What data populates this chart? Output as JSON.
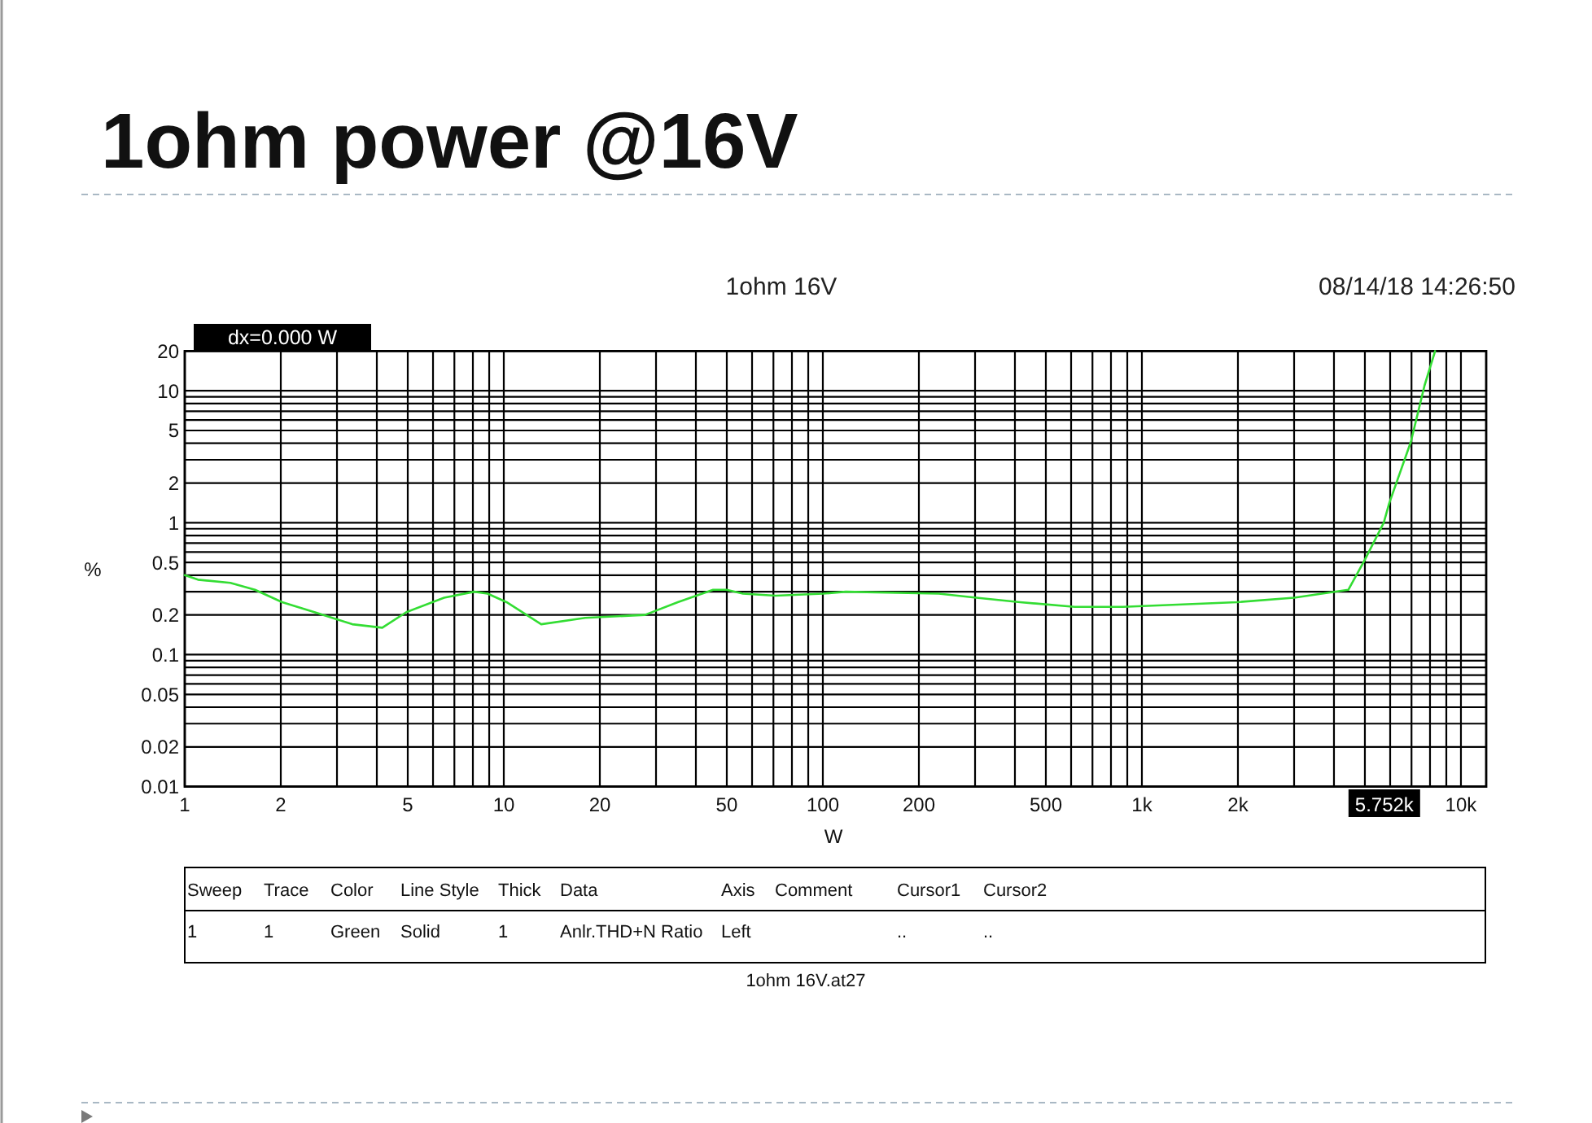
{
  "chart_data": {
    "type": "line",
    "title": "1ohm power @16V",
    "subtitle": "1ohm 16V",
    "xlabel": "W",
    "ylabel": "%",
    "annotations": [
      "08/14/18 14:26:50",
      "dx=0.000 W",
      {
        "text": "5.752k",
        "x": 5752
      },
      "1ohm 16V.at27",
      "Sweep",
      "Trace",
      "Color",
      "Line Style",
      "Thick",
      "Data",
      "Axis",
      "Comment",
      "Cursor1",
      "Cursor2",
      "1",
      "1",
      "Green",
      "Solid",
      "1",
      "Anlr.THD+N Ratio",
      "Left",
      "..",
      ".."
    ],
    "series": [
      {
        "color": "#33dd33",
        "x": [
          1,
          1.1,
          1.39,
          1.66,
          2.02,
          2.55,
          3.35,
          4.16,
          4.95,
          6.5,
          8.08,
          8.9,
          10.2,
          13.1,
          18,
          27.7,
          35.1,
          45.3,
          49.9,
          56.2,
          71.1,
          100,
          118,
          231,
          303,
          415,
          616,
          872,
          1986,
          3000,
          4436,
          4990,
          5729,
          5957,
          6967,
          7693,
          8300
        ],
        "values": [
          0.4,
          0.37,
          0.35,
          0.31,
          0.25,
          0.21,
          0.17,
          0.16,
          0.21,
          0.27,
          0.3,
          0.29,
          0.25,
          0.17,
          0.19,
          0.2,
          0.25,
          0.31,
          0.31,
          0.29,
          0.28,
          0.29,
          0.3,
          0.29,
          0.27,
          0.25,
          0.23,
          0.23,
          0.25,
          0.27,
          0.31,
          0.52,
          1.0,
          1.4,
          4.1,
          11,
          20
        ]
      }
    ],
    "log": "xy",
    "grid": true,
    "xlim": [
      1,
      12000
    ],
    "ylim": [
      0.01,
      20
    ],
    "xticks": [
      1,
      2,
      {
        "value": 3,
        "label": null
      },
      {
        "value": 4,
        "label": null
      },
      5,
      {
        "value": 6,
        "label": null
      },
      {
        "value": 7,
        "label": null
      },
      {
        "value": 8,
        "label": null
      },
      {
        "value": 9,
        "label": null
      },
      10,
      20,
      {
        "value": 30,
        "label": null
      },
      {
        "value": 40,
        "label": null
      },
      50,
      {
        "value": 60,
        "label": null
      },
      {
        "value": 70,
        "label": null
      },
      {
        "value": 80,
        "label": null
      },
      {
        "value": 90,
        "label": null
      },
      100,
      200,
      {
        "value": 300,
        "label": null
      },
      {
        "value": 400,
        "label": null
      },
      500,
      {
        "value": 600,
        "label": null
      },
      {
        "value": 700,
        "label": null
      },
      {
        "value": 800,
        "label": null
      },
      {
        "value": 900,
        "label": null
      },
      {
        "value": 1000,
        "label": "1k"
      },
      {
        "value": 2000,
        "label": "2k"
      },
      {
        "value": 3000,
        "label": null
      },
      {
        "value": 4000,
        "label": null
      },
      {
        "value": 5000,
        "label": null
      },
      {
        "value": 6000,
        "label": null
      },
      {
        "value": 7000,
        "label": null
      },
      {
        "value": 8000,
        "label": null
      },
      {
        "value": 9000,
        "label": null
      },
      {
        "value": 10000,
        "label": "10k"
      }
    ],
    "yticks": [
      0.01,
      0.02,
      {
        "value": 0.03,
        "label": null
      },
      {
        "value": 0.04,
        "label": null
      },
      0.05,
      {
        "value": 0.06,
        "label": null
      },
      {
        "value": 0.07,
        "label": null
      },
      {
        "value": 0.08,
        "label": null
      },
      {
        "value": 0.09,
        "label": null
      },
      0.1,
      0.2,
      {
        "value": 0.3,
        "label": null
      },
      {
        "value": 0.4,
        "label": null
      },
      0.5,
      {
        "value": 0.6,
        "label": null
      },
      {
        "value": 0.7,
        "label": null
      },
      {
        "value": 0.8,
        "label": null
      },
      {
        "value": 0.9,
        "label": null
      },
      1,
      2,
      {
        "value": 3,
        "label": null
      },
      {
        "value": 4,
        "label": null
      },
      5,
      {
        "value": 6,
        "label": null
      },
      {
        "value": 7,
        "label": null
      },
      {
        "value": 8,
        "label": null
      },
      {
        "value": 9,
        "label": null
      },
      10,
      20
    ]
  }
}
